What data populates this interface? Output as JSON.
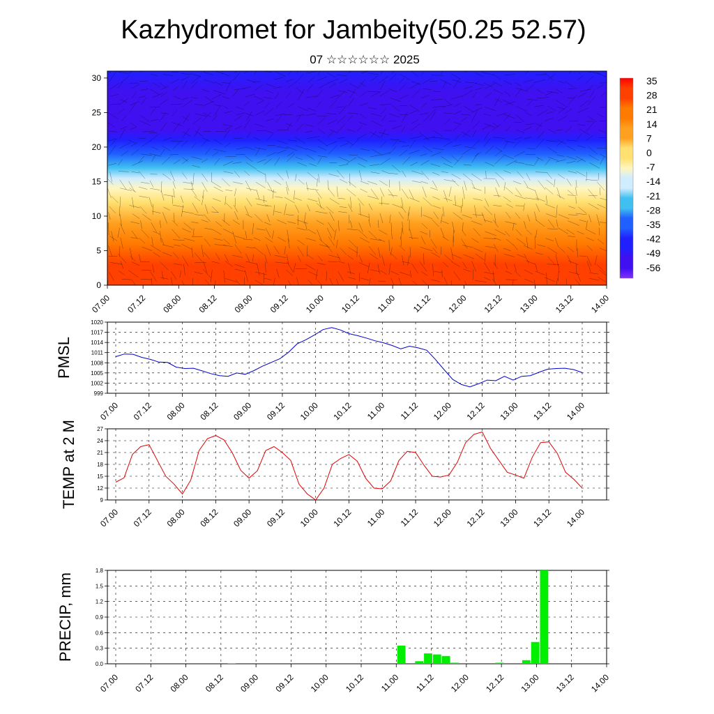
{
  "title": "Kazhydromet for Jambeity(50.25 52.57)",
  "subtitle": "07 ☆☆☆☆☆☆ 2025",
  "time_labels": [
    "07.00",
    "07.12",
    "08.00",
    "08.12",
    "09.00",
    "09.12",
    "10.00",
    "10.12",
    "11.00",
    "11.12",
    "12.00",
    "12.12",
    "13.00",
    "13.12",
    "14.00"
  ],
  "colors": {
    "pmsl_line": "#0000cc",
    "temp_line": "#e00000",
    "precip_bar": "#00ee00",
    "cross_section": [
      "#ff0000",
      "#ff4000",
      "#ff7a00",
      "#ffa020",
      "#ffe070",
      "#fff6c0",
      "#d0ecff",
      "#40c0f0",
      "#2060ff",
      "#2020ff",
      "#4010f0",
      "#8030ff"
    ]
  },
  "chart_data": [
    {
      "type": "heatmap",
      "name": "cross-section",
      "ylabel": "",
      "ylim": [
        0,
        31
      ],
      "yticks": [
        0,
        5,
        10,
        15,
        20,
        25,
        30
      ],
      "colorbar_labels": [
        "35",
        "28",
        "21",
        "14",
        "7",
        "0",
        "-7",
        "-14",
        "-21",
        "-28",
        "-35",
        "-42",
        "-49",
        "-56"
      ],
      "colorbar_range": [
        -63,
        38
      ],
      "profile_levels": [
        0,
        3,
        6,
        9,
        12,
        14,
        15.5,
        17,
        19,
        21,
        22.5,
        24,
        26,
        28,
        31
      ],
      "profile_values": [
        30,
        27,
        21,
        15,
        5,
        -4,
        -13,
        -22,
        -32,
        -42,
        -50,
        -55,
        -58,
        -56,
        -48
      ]
    },
    {
      "type": "line",
      "name": "PMSL",
      "ylabel": "PMSL",
      "ylim": [
        999,
        1020
      ],
      "yticks": [
        999,
        1002,
        1005,
        1008,
        1011,
        1014,
        1017,
        1020
      ],
      "values": [
        1009.8,
        1010.6,
        1010.5,
        1009.6,
        1009.0,
        1008.2,
        1008.1,
        1006.7,
        1006.3,
        1006.4,
        1005.6,
        1004.8,
        1004.2,
        1004.0,
        1005.0,
        1004.6,
        1005.7,
        1007.0,
        1008.1,
        1009.2,
        1011.1,
        1013.6,
        1014.8,
        1016.2,
        1017.8,
        1018.4,
        1017.7,
        1016.6,
        1016.0,
        1015.3,
        1014.5,
        1013.9,
        1013.1,
        1012.1,
        1012.9,
        1012.4,
        1011.7,
        1009.0,
        1006.0,
        1003.1,
        1001.6,
        1000.9,
        1001.8,
        1002.9,
        1002.7,
        1004.0,
        1002.9,
        1004.0,
        1004.2,
        1005.2,
        1006.1,
        1006.3,
        1006.4,
        1006.0,
        1005.1
      ]
    },
    {
      "type": "line",
      "name": "TEMP at 2 M",
      "ylabel": "TEMP at 2 M",
      "ylim": [
        9,
        27
      ],
      "yticks": [
        9,
        12,
        15,
        18,
        21,
        24,
        27
      ],
      "values": [
        13.5,
        14.6,
        20.5,
        22.5,
        23.0,
        19.0,
        15.0,
        13.0,
        10.5,
        14.0,
        21.5,
        24.5,
        25.3,
        24.2,
        20.9,
        16.5,
        14.5,
        16.4,
        21.5,
        22.5,
        21.0,
        19.0,
        13.0,
        10.5,
        9.0,
        12.0,
        18.0,
        19.5,
        20.5,
        18.8,
        14.5,
        12.0,
        11.8,
        13.8,
        19.0,
        21.3,
        21.0,
        17.8,
        15.0,
        14.8,
        15.3,
        18.5,
        23.5,
        25.6,
        26.2,
        22.0,
        19.0,
        16.0,
        15.3,
        14.5,
        19.8,
        23.5,
        23.7,
        20.8,
        16.0,
        14.2,
        12.0
      ]
    },
    {
      "type": "bar",
      "name": "PRECIP, mm",
      "ylabel": "PRECIP, mm",
      "ylim": [
        0,
        1.8
      ],
      "yticks": [
        "0.0",
        "0.3",
        "0.6",
        "0.9",
        "1.2",
        "1.5",
        "1.8"
      ],
      "values": [
        0,
        0,
        0,
        0,
        0,
        0,
        0,
        0,
        0,
        0,
        0,
        0,
        0,
        0.01,
        0,
        0,
        0,
        0,
        0,
        0,
        0,
        0,
        0,
        0,
        0,
        0,
        0,
        0,
        0,
        0,
        0,
        0,
        0.35,
        0,
        0.05,
        0.2,
        0.18,
        0.15,
        0.02,
        0,
        0,
        0,
        0,
        0.02,
        0,
        0,
        0.07,
        0.42,
        1.8,
        0,
        0,
        0,
        0,
        0,
        0,
        0
      ]
    }
  ]
}
